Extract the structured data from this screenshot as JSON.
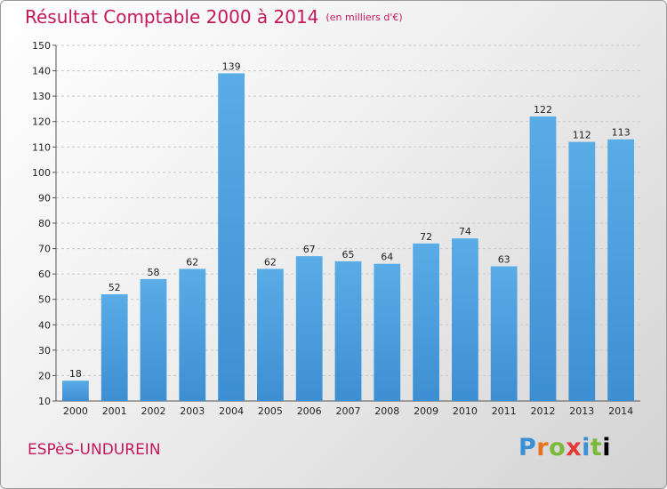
{
  "chart_data": {
    "type": "bar",
    "title": "Résultat Comptable 2000 à 2014",
    "subtitle": "(en milliers d'€)",
    "categories": [
      "2000",
      "2001",
      "2002",
      "2003",
      "2004",
      "2005",
      "2006",
      "2007",
      "2008",
      "2009",
      "2010",
      "2011",
      "2012",
      "2013",
      "2014"
    ],
    "values": [
      18,
      52,
      58,
      62,
      139,
      62,
      67,
      65,
      64,
      72,
      74,
      63,
      122,
      112,
      113
    ],
    "ylim": [
      10,
      150
    ],
    "yticks": [
      10,
      20,
      30,
      40,
      50,
      60,
      70,
      80,
      90,
      100,
      110,
      120,
      130,
      140,
      150
    ],
    "grid": true,
    "bar_color": "#3d8fd3",
    "bar_color_light": "#5aace6"
  },
  "footer": {
    "place": "ESPèS-UNDUREIN",
    "logo_letters": [
      "P",
      "r",
      "o",
      "x",
      "i",
      "t",
      "i"
    ]
  }
}
